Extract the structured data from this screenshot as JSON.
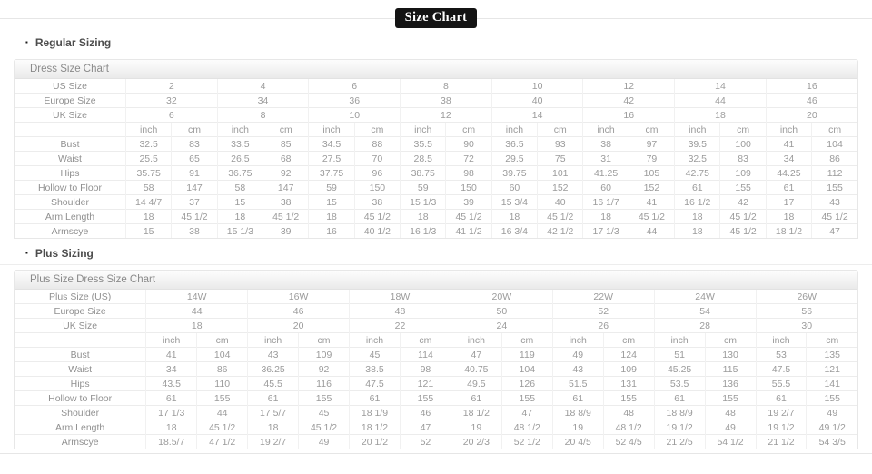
{
  "page": {
    "title": "Size Chart"
  },
  "colors": {
    "title_bg": "#141414",
    "title_fg": "#ffffff",
    "heading_text": "#4d4d4d",
    "cell_text": "#9b9b9b",
    "border": "#e7e7e7"
  },
  "sections": [
    {
      "heading": "Regular Sizing",
      "table": {
        "title": "Dress Size Chart",
        "size_rows": [
          {
            "label": "US Size",
            "values": [
              "2",
              "4",
              "6",
              "8",
              "10",
              "12",
              "14",
              "16"
            ]
          },
          {
            "label": "Europe Size",
            "values": [
              "32",
              "34",
              "36",
              "38",
              "40",
              "42",
              "44",
              "46"
            ]
          },
          {
            "label": "UK Size",
            "values": [
              "6",
              "8",
              "10",
              "12",
              "14",
              "16",
              "18",
              "20"
            ]
          }
        ],
        "unit_labels": [
          "inch",
          "cm"
        ],
        "measure_rows": [
          {
            "label": "Bust",
            "values": [
              [
                "32.5",
                "83"
              ],
              [
                "33.5",
                "85"
              ],
              [
                "34.5",
                "88"
              ],
              [
                "35.5",
                "90"
              ],
              [
                "36.5",
                "93"
              ],
              [
                "38",
                "97"
              ],
              [
                "39.5",
                "100"
              ],
              [
                "41",
                "104"
              ]
            ]
          },
          {
            "label": "Waist",
            "values": [
              [
                "25.5",
                "65"
              ],
              [
                "26.5",
                "68"
              ],
              [
                "27.5",
                "70"
              ],
              [
                "28.5",
                "72"
              ],
              [
                "29.5",
                "75"
              ],
              [
                "31",
                "79"
              ],
              [
                "32.5",
                "83"
              ],
              [
                "34",
                "86"
              ]
            ]
          },
          {
            "label": "Hips",
            "values": [
              [
                "35.75",
                "91"
              ],
              [
                "36.75",
                "92"
              ],
              [
                "37.75",
                "96"
              ],
              [
                "38.75",
                "98"
              ],
              [
                "39.75",
                "101"
              ],
              [
                "41.25",
                "105"
              ],
              [
                "42.75",
                "109"
              ],
              [
                "44.25",
                "112"
              ]
            ]
          },
          {
            "label": "Hollow to Floor",
            "values": [
              [
                "58",
                "147"
              ],
              [
                "58",
                "147"
              ],
              [
                "59",
                "150"
              ],
              [
                "59",
                "150"
              ],
              [
                "60",
                "152"
              ],
              [
                "60",
                "152"
              ],
              [
                "61",
                "155"
              ],
              [
                "61",
                "155"
              ]
            ]
          },
          {
            "label": "Shoulder",
            "values": [
              [
                "14 4/7",
                "37"
              ],
              [
                "15",
                "38"
              ],
              [
                "15",
                "38"
              ],
              [
                "15 1/3",
                "39"
              ],
              [
                "15 3/4",
                "40"
              ],
              [
                "16 1/7",
                "41"
              ],
              [
                "16 1/2",
                "42"
              ],
              [
                "17",
                "43"
              ]
            ]
          },
          {
            "label": "Arm Length",
            "values": [
              [
                "18",
                "45 1/2"
              ],
              [
                "18",
                "45 1/2"
              ],
              [
                "18",
                "45 1/2"
              ],
              [
                "18",
                "45 1/2"
              ],
              [
                "18",
                "45 1/2"
              ],
              [
                "18",
                "45 1/2"
              ],
              [
                "18",
                "45 1/2"
              ],
              [
                "18",
                "45 1/2"
              ]
            ]
          },
          {
            "label": "Armscye",
            "values": [
              [
                "15",
                "38"
              ],
              [
                "15 1/3",
                "39"
              ],
              [
                "16",
                "40 1/2"
              ],
              [
                "16 1/3",
                "41 1/2"
              ],
              [
                "16 3/4",
                "42 1/2"
              ],
              [
                "17 1/3",
                "44"
              ],
              [
                "18",
                "45 1/2"
              ],
              [
                "18 1/2",
                "47"
              ]
            ]
          }
        ]
      }
    },
    {
      "heading": "Plus Sizing",
      "table": {
        "title": "Plus Size Dress Size Chart",
        "size_rows": [
          {
            "label": "Plus Size (US)",
            "values": [
              "14W",
              "16W",
              "18W",
              "20W",
              "22W",
              "24W",
              "26W"
            ]
          },
          {
            "label": "Europe Size",
            "values": [
              "44",
              "46",
              "48",
              "50",
              "52",
              "54",
              "56"
            ]
          },
          {
            "label": "UK Size",
            "values": [
              "18",
              "20",
              "22",
              "24",
              "26",
              "28",
              "30"
            ]
          }
        ],
        "unit_labels": [
          "inch",
          "cm"
        ],
        "measure_rows": [
          {
            "label": "Bust",
            "values": [
              [
                "41",
                "104"
              ],
              [
                "43",
                "109"
              ],
              [
                "45",
                "114"
              ],
              [
                "47",
                "119"
              ],
              [
                "49",
                "124"
              ],
              [
                "51",
                "130"
              ],
              [
                "53",
                "135"
              ]
            ]
          },
          {
            "label": "Waist",
            "values": [
              [
                "34",
                "86"
              ],
              [
                "36.25",
                "92"
              ],
              [
                "38.5",
                "98"
              ],
              [
                "40.75",
                "104"
              ],
              [
                "43",
                "109"
              ],
              [
                "45.25",
                "115"
              ],
              [
                "47.5",
                "121"
              ]
            ]
          },
          {
            "label": "Hips",
            "values": [
              [
                "43.5",
                "110"
              ],
              [
                "45.5",
                "116"
              ],
              [
                "47.5",
                "121"
              ],
              [
                "49.5",
                "126"
              ],
              [
                "51.5",
                "131"
              ],
              [
                "53.5",
                "136"
              ],
              [
                "55.5",
                "141"
              ]
            ]
          },
          {
            "label": "Hollow to Floor",
            "values": [
              [
                "61",
                "155"
              ],
              [
                "61",
                "155"
              ],
              [
                "61",
                "155"
              ],
              [
                "61",
                "155"
              ],
              [
                "61",
                "155"
              ],
              [
                "61",
                "155"
              ],
              [
                "61",
                "155"
              ]
            ]
          },
          {
            "label": "Shoulder",
            "values": [
              [
                "17 1/3",
                "44"
              ],
              [
                "17 5/7",
                "45"
              ],
              [
                "18 1/9",
                "46"
              ],
              [
                "18 1/2",
                "47"
              ],
              [
                "18 8/9",
                "48"
              ],
              [
                "18 8/9",
                "48"
              ],
              [
                "19 2/7",
                "49"
              ]
            ]
          },
          {
            "label": "Arm Length",
            "values": [
              [
                "18",
                "45 1/2"
              ],
              [
                "18",
                "45 1/2"
              ],
              [
                "18 1/2",
                "47"
              ],
              [
                "19",
                "48 1/2"
              ],
              [
                "19",
                "48 1/2"
              ],
              [
                "19 1/2",
                "49"
              ],
              [
                "19 1/2",
                "49 1/2"
              ]
            ]
          },
          {
            "label": "Armscye",
            "values": [
              [
                "18.5/7",
                "47 1/2"
              ],
              [
                "19 2/7",
                "49"
              ],
              [
                "20 1/2",
                "52"
              ],
              [
                "20 2/3",
                "52 1/2"
              ],
              [
                "20 4/5",
                "52 4/5"
              ],
              [
                "21 2/5",
                "54 1/2"
              ],
              [
                "21 1/2",
                "54 3/5"
              ]
            ]
          }
        ]
      }
    }
  ]
}
